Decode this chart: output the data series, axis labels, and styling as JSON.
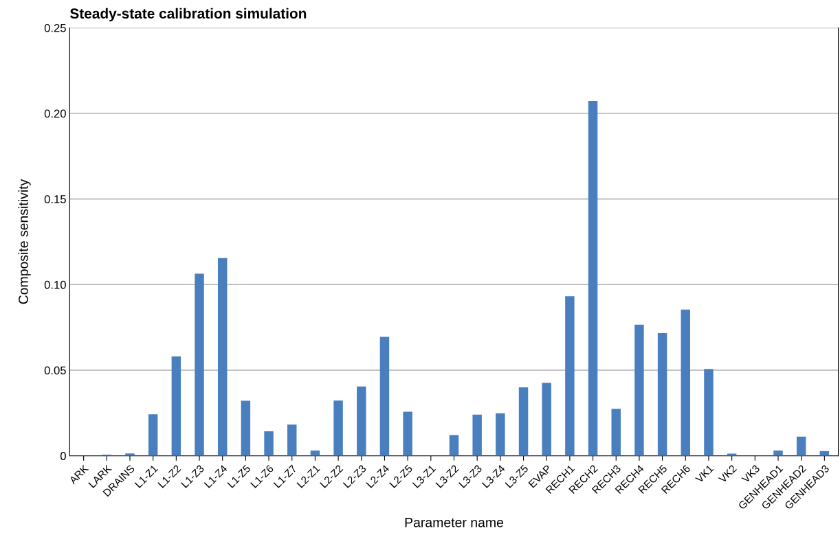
{
  "chart_data": {
    "type": "bar",
    "title": "Steady-state calibration simulation",
    "xlabel": "Parameter name",
    "ylabel": "Composite sensitivity",
    "categories": [
      "ARK",
      "LARK",
      "DRAINS",
      "L1-Z1",
      "L1-Z2",
      "L1-Z3",
      "L1-Z4",
      "L1-Z5",
      "L1-Z6",
      "L1-Z7",
      "L2-Z1",
      "L2-Z2",
      "L2-Z3",
      "L2-Z4",
      "L2-Z5",
      "L3-Z1",
      "L3-Z2",
      "L3-Z3",
      "L3-Z4",
      "L3-Z5",
      "EVAP",
      "RECH1",
      "RECH2",
      "RECH3",
      "RECH4",
      "RECH5",
      "RECH6",
      "VK1",
      "VK2",
      "VK3",
      "GENHEAD1",
      "GENHEAD2",
      "GENHEAD3"
    ],
    "values": [
      0,
      0.0007,
      0.0014,
      0.0243,
      0.0581,
      0.1064,
      0.1155,
      0.0322,
      0.0143,
      0.0182,
      0.0031,
      0.0323,
      0.0405,
      0.0695,
      0.0258,
      0,
      0.0121,
      0.0241,
      0.0249,
      0.04,
      0.0426,
      0.0933,
      0.2073,
      0.0275,
      0.0766,
      0.0717,
      0.0854,
      0.0507,
      0.0013,
      0,
      0.0031,
      0.0112,
      0.0028
    ],
    "color": "#4a7fbf",
    "ylim": [
      0,
      0.25
    ],
    "yticks": [
      {
        "value": 0,
        "label": "0"
      },
      {
        "value": 0.05,
        "label": "0.05"
      },
      {
        "value": 0.1,
        "label": "0.10"
      },
      {
        "value": 0.15,
        "label": "0.15"
      },
      {
        "value": 0.2,
        "label": "0.20"
      },
      {
        "value": 0.25,
        "label": "0.25"
      }
    ],
    "grid": "y",
    "legend": false
  }
}
